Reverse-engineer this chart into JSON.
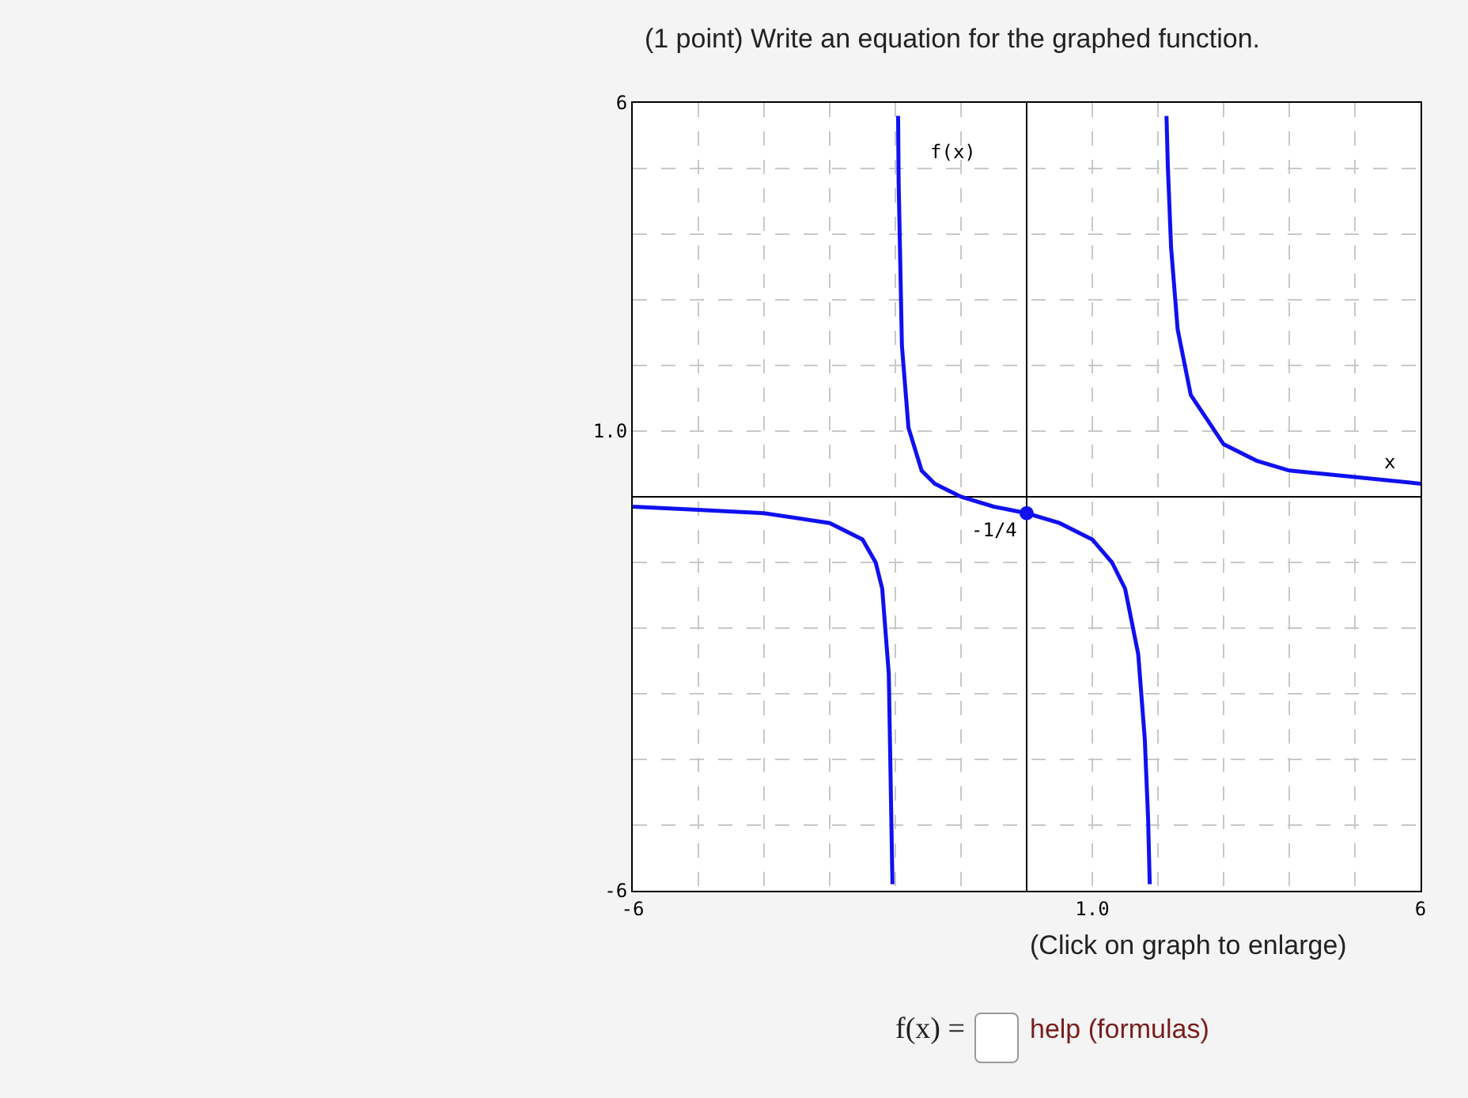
{
  "chart_data": {
    "type": "line",
    "title": "(1 point) Write an equation for the graphed function.",
    "xlabel": "x",
    "ylabel": "f(x)",
    "xlim": [
      -6,
      6
    ],
    "ylim": [
      -6,
      6
    ],
    "xticks": [
      -6,
      {
        "value": -5,
        "label": null
      },
      {
        "value": -4,
        "label": null
      },
      {
        "value": -3,
        "label": null
      },
      {
        "value": -2,
        "label": null
      },
      {
        "value": -1,
        "label": null
      },
      {
        "value": 0,
        "label": null
      },
      {
        "value": 1,
        "label": "1.0"
      },
      {
        "value": 2,
        "label": null
      },
      {
        "value": 3,
        "label": null
      },
      {
        "value": 4,
        "label": null
      },
      {
        "value": 5,
        "label": null
      },
      6
    ],
    "yticks": [
      -6,
      {
        "value": -5,
        "label": null
      },
      {
        "value": -4,
        "label": null
      },
      {
        "value": -3,
        "label": null
      },
      {
        "value": -2,
        "label": null
      },
      {
        "value": -1,
        "label": null
      },
      {
        "value": 0,
        "label": null
      },
      {
        "value": 1,
        "label": "1.0"
      },
      {
        "value": 2,
        "label": null
      },
      {
        "value": 3,
        "label": null
      },
      {
        "value": 4,
        "label": null
      },
      {
        "value": 5,
        "label": null
      },
      6
    ],
    "grid": true,
    "series": [
      {
        "marker": "none",
        "color": "#1010f0",
        "x": [
          -6,
          -5,
          -4,
          -3,
          -2.5,
          -2.3,
          -2.2,
          -2.1,
          -2.044
        ],
        "values": [
          -0.15,
          -0.2,
          -0.25,
          -0.4,
          -0.65,
          -1,
          -1.4,
          -2.7,
          -5.9
        ]
      },
      {
        "marker": "none",
        "color": "#1010f0",
        "x": [
          -1.958,
          -1.95,
          -1.9,
          -1.8,
          -1.6,
          -1.4,
          -1.2,
          -1,
          -0.5,
          0,
          0.5,
          1,
          1.3,
          1.5,
          1.7,
          1.8,
          1.85,
          1.875
        ],
        "values": [
          5.8,
          4.8,
          2.3,
          1.05,
          0.4,
          0.2,
          0.1,
          0,
          -0.15,
          -0.25,
          -0.4,
          -0.65,
          -1,
          -1.4,
          -2.4,
          -3.7,
          -4.9,
          -5.9
        ]
      },
      {
        "marker": "none",
        "color": "#1010f0",
        "x": [
          2.13,
          2.15,
          2.2,
          2.3,
          2.5,
          3,
          3.5,
          4,
          5,
          6
        ],
        "values": [
          5.8,
          5.05,
          3.8,
          2.55,
          1.55,
          0.8,
          0.55,
          0.4,
          0.3,
          0.2
        ]
      },
      {
        "type": "scatter",
        "marker": "circle",
        "color": "#1010f0",
        "x": [
          0
        ],
        "values": [
          -0.25
        ]
      }
    ],
    "annotations": [
      {
        "text": "-1/4",
        "x": 0,
        "y": -0.25
      },
      "(Click on graph to enlarge)",
      "f(x) =",
      "help (formulas)"
    ]
  }
}
